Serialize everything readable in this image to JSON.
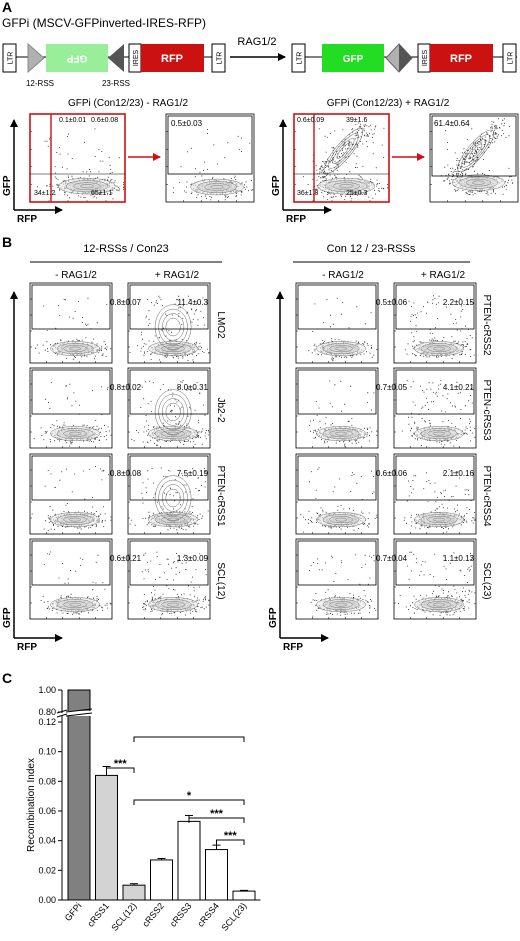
{
  "panelA": {
    "letter": "A",
    "title": "GFPi (MSCV-GFPinverted-IRES-RFP)",
    "construct_before": {
      "ltr_left": "LTR",
      "gfp": "GFP",
      "ires": "IRES",
      "rfp": "RFP",
      "ltr_right": "LTR",
      "rss12": "12-RSS",
      "rss23": "23-RSS"
    },
    "arrow_label": "RAG1/2",
    "construct_after": {
      "ltr_left": "LTR",
      "gfp": "GFP",
      "ires": "IRES",
      "rfp": "RFP",
      "ltr_right": "LTR"
    },
    "flow_left": {
      "title": "GFPi (Con12/23) - RAG1/2",
      "tl": "0.1±0.01",
      "tr": "0.6±0.08",
      "bl": "34±1.2",
      "br": "65±1.1",
      "gate": "0.5±0.03"
    },
    "flow_right": {
      "title": "GFPi (Con12/23) + RAG1/2",
      "tl": "0.6±0.09",
      "tr": "39±1.6",
      "bl": "36±1.8",
      "br": "25±0.3",
      "gate": "61.4±0.64"
    },
    "ylabel": "GFP",
    "xlabel": "RFP"
  },
  "panelB": {
    "letter": "B",
    "group_left": "12-RSSs / Con23",
    "group_right": "Con 12 / 23-RSSs",
    "col_minus": "- RAG1/2",
    "col_plus": "+ RAG1/2",
    "ylabel": "GFP",
    "xlabel": "RFP",
    "left_rows": [
      {
        "label": "LMO2",
        "minus": "0.8±0.07",
        "plus": "11.4±0.3"
      },
      {
        "label": "Jb2-2",
        "minus": "0.8±0.02",
        "plus": "8.0±0.31"
      },
      {
        "label": "PTEN-cRSS1",
        "minus": "0.8±0.08",
        "plus": "7.5±0.19"
      },
      {
        "label": "SCL(12)",
        "minus": "0.6±0.21",
        "plus": "1.3±0.09"
      }
    ],
    "right_rows": [
      {
        "label": "PTEN-cRSS2",
        "minus": "0.5±0.06",
        "plus": "2.2±0.15"
      },
      {
        "label": "PTEN-cRSS3",
        "minus": "0.7±0.05",
        "plus": "4.1±0.21"
      },
      {
        "label": "PTEN-cRSS4",
        "minus": "0.6±0.06",
        "plus": "2.1±0.16"
      },
      {
        "label": "SCL(23)",
        "minus": "0.7±0.04",
        "plus": "1.1±0.13"
      }
    ]
  },
  "panelC": {
    "letter": "C",
    "chart_data": {
      "type": "bar",
      "ylabel": "Recombination Index",
      "categories": [
        "GFPi",
        "cRSS1",
        "SCL(12)",
        "cRSS2",
        "cRSS3",
        "cRSS4",
        "SCL(23)"
      ],
      "values": [
        1.0,
        0.084,
        0.01,
        0.027,
        0.053,
        0.034,
        0.006
      ],
      "errors": [
        0.0,
        0.006,
        0.001,
        0.001,
        0.004,
        0.003,
        0.0005
      ],
      "fills": [
        "#808080",
        "#d3d3d3",
        "#d3d3d3",
        "#ffffff",
        "#ffffff",
        "#ffffff",
        "#ffffff"
      ],
      "y_ticks_lower": [
        "0.00",
        "0.02",
        "0.04",
        "0.06",
        "0.08",
        "0.10",
        "0.12"
      ],
      "y_ticks_upper": [
        "0.80",
        "1.00"
      ],
      "axis_break": true,
      "significance": [
        {
          "from": "cRSS1",
          "to": "SCL(12)",
          "label": "***"
        },
        {
          "from": "cRSS1",
          "to": "SCL(23)",
          "label": ""
        },
        {
          "from": "SCL(12)",
          "to": "SCL(23)",
          "label": "*"
        },
        {
          "from": "cRSS3",
          "to": "SCL(23)",
          "label": "***"
        },
        {
          "from": "cRSS4",
          "to": "SCL(23)",
          "label": "***"
        }
      ]
    }
  },
  "colors": {
    "gfp_bright": "#22dd22",
    "gfp_light": "#99ee99",
    "rfp": "#cc1111",
    "gate_red": "#cc1111",
    "dots": "#222222"
  }
}
